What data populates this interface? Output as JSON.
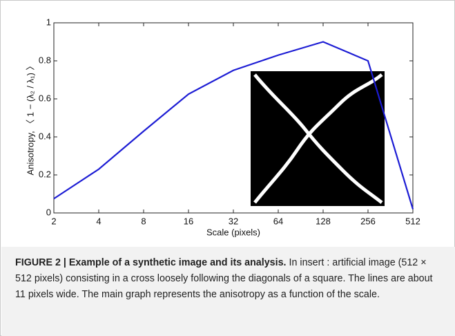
{
  "chart_data": {
    "type": "line",
    "xlabel": "Scale (pixels)",
    "ylabel": "Anisotropy, 〈 1 − (λ₂ / λ₁) 〉",
    "x": [
      2,
      4,
      8,
      16,
      32,
      64,
      128,
      256,
      512
    ],
    "values": [
      0.075,
      0.23,
      0.43,
      0.625,
      0.75,
      0.83,
      0.9,
      0.8,
      0.02
    ],
    "color": "#1c1cd4",
    "xscale": "log2",
    "xlim": [
      2,
      512
    ],
    "xticks": [
      2,
      4,
      8,
      16,
      32,
      64,
      128,
      256,
      512
    ],
    "ylim": [
      0,
      1
    ],
    "yticks": [
      0,
      0.2,
      0.4,
      0.6,
      0.8,
      1
    ]
  },
  "caption": {
    "label": "FIGURE 2 | Example of a synthetic image and its analysis.",
    "text": " In insert : artificial image (512 × 512 pixels) consisting in a cross loosely following the diagonals of a square. The lines are about 11 pixels wide. The main graph represents the anisotropy as a function of the scale."
  }
}
